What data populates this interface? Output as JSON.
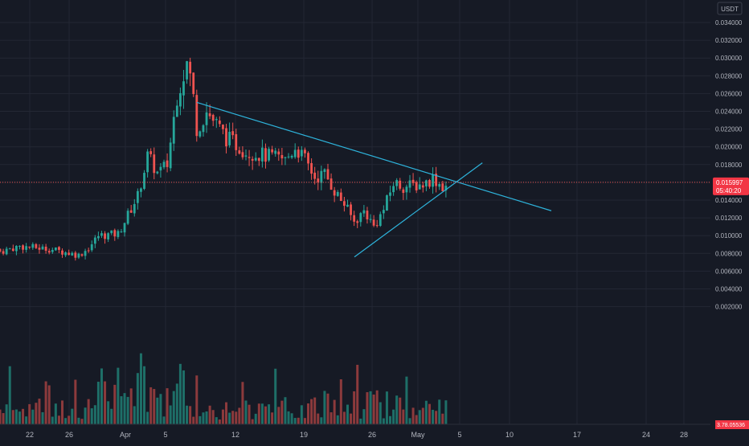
{
  "currency": "USDT",
  "colors": {
    "background": "#161a25",
    "grid": "#232734",
    "text": "#b2b5be",
    "up": "#26a69a",
    "down": "#ef5350",
    "volume_up": "#1e6f68",
    "volume_down": "#8c3a3c",
    "trendline": "#2eb4dc",
    "price_line": "#ef5350",
    "label_bg": "#f23645"
  },
  "chart_data": {
    "type": "candlestick",
    "x_tick_labels": [
      "22",
      "26",
      "Apr",
      "5",
      "12",
      "19",
      "26",
      "May",
      "5",
      "10",
      "17",
      "24",
      "28"
    ],
    "y_tick_labels": [
      "0.034000",
      "0.032000",
      "0.030000",
      "0.028000",
      "0.026000",
      "0.024000",
      "0.022000",
      "0.020000",
      "0.018000",
      "0.016000",
      "0.014000",
      "0.012000",
      "0.010000",
      "0.008000",
      "0.006000",
      "0.004000",
      "0.002000"
    ],
    "ylim": [
      0,
      0.035
    ],
    "last_price": "0.015997",
    "countdown": "05:40:20",
    "volume_label": "3.78.05536",
    "grid": true,
    "trendlines": [
      {
        "name": "descending resistance",
        "from": [
          "Apr 7",
          0.025
        ],
        "to": [
          "May 13",
          0.0128
        ]
      },
      {
        "name": "ascending support",
        "from": [
          "Apr 23",
          0.0076
        ],
        "to": [
          "May 6",
          0.0182
        ]
      }
    ],
    "candles": {
      "anchors": [
        [
          "Mar 18",
          0.0082
        ],
        [
          "Mar 20",
          0.0088
        ],
        [
          "Mar 23",
          0.0085
        ],
        [
          "Mar 26",
          0.0078
        ],
        [
          "Mar 27",
          0.0086
        ],
        [
          "Mar 28",
          0.01
        ],
        [
          "Mar 30",
          0.0102
        ],
        [
          "Apr 1",
          0.0145
        ],
        [
          "Apr 2",
          0.019
        ],
        [
          "Apr 3",
          0.017
        ],
        [
          "Apr 4",
          0.018
        ],
        [
          "Apr 5",
          0.026
        ],
        [
          "Apr 6",
          0.0295
        ],
        [
          "Apr 6.5",
          0.027
        ],
        [
          "Apr 7",
          0.022
        ],
        [
          "Apr 8",
          0.024
        ],
        [
          "Apr 10",
          0.021
        ],
        [
          "Apr 12",
          0.0195
        ],
        [
          "Apr 14",
          0.019
        ],
        [
          "Apr 16",
          0.0185
        ],
        [
          "Apr 17",
          0.02
        ],
        [
          "Apr 18",
          0.0185
        ],
        [
          "Apr 19",
          0.0165
        ],
        [
          "Apr 20",
          0.017
        ],
        [
          "Apr 21",
          0.015
        ],
        [
          "Apr 22",
          0.0135
        ],
        [
          "Apr 23",
          0.0115
        ],
        [
          "Apr 24",
          0.0128
        ],
        [
          "Apr 25",
          0.011
        ],
        [
          "Apr 26",
          0.013
        ],
        [
          "Apr 27",
          0.016
        ],
        [
          "Apr 28",
          0.0155
        ],
        [
          "Apr 30",
          0.0158
        ],
        [
          "May 1",
          0.0165
        ],
        [
          "May 2",
          0.0155
        ],
        [
          "May 3",
          0.016
        ]
      ]
    }
  }
}
